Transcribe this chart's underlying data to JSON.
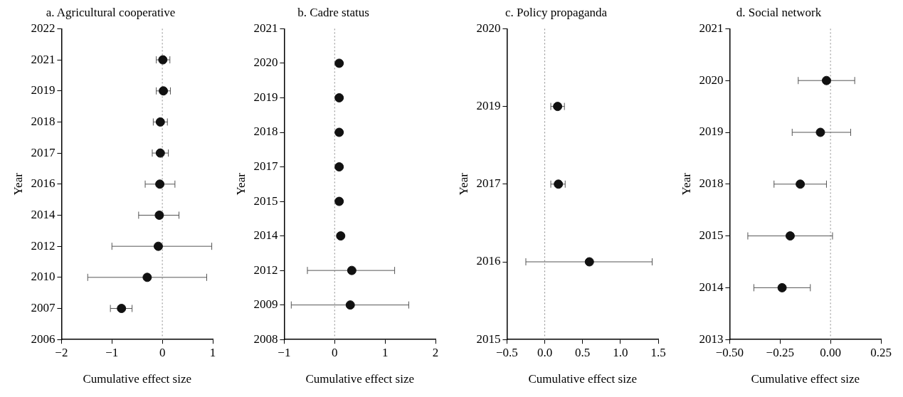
{
  "chart_data": [
    {
      "type": "scatter",
      "orientation": "horizontal",
      "title": "a. Agricultural cooperative",
      "xlabel": "Cumulative effect size",
      "ylabel": "Year",
      "marker": "circle",
      "grid": false,
      "categories": [
        "2022",
        "2021",
        "2019",
        "2018",
        "2017",
        "2016",
        "2014",
        "2012",
        "2010",
        "2007",
        "2006"
      ],
      "series": [
        {
          "color": "#111111",
          "values": [
            null,
            0.01,
            0.02,
            -0.04,
            -0.04,
            -0.05,
            -0.06,
            -0.08,
            -0.3,
            -0.81,
            null
          ],
          "errors": [
            null,
            [
              -0.12,
              0.15
            ],
            [
              -0.12,
              0.16
            ],
            [
              -0.18,
              0.1
            ],
            [
              -0.2,
              0.12
            ],
            [
              -0.34,
              0.25
            ],
            [
              -0.47,
              0.33
            ],
            [
              -1.0,
              0.98
            ],
            [
              -1.48,
              0.88
            ],
            [
              -1.03,
              -0.6
            ],
            null
          ]
        }
      ],
      "xlim": [
        -2,
        1
      ],
      "xticks": [
        -2,
        -1,
        0,
        1
      ],
      "ref_lines": [
        {
          "axis": "x",
          "value": 0,
          "color": "#888888",
          "line_style": "dotted"
        }
      ]
    },
    {
      "type": "scatter",
      "orientation": "horizontal",
      "title": "b. Cadre status",
      "xlabel": "Cumulative effect size",
      "ylabel": "Year",
      "marker": "circle",
      "grid": false,
      "categories": [
        "2021",
        "2020",
        "2019",
        "2018",
        "2017",
        "2015",
        "2014",
        "2012",
        "2009",
        "2008"
      ],
      "series": [
        {
          "color": "#111111",
          "values": [
            null,
            0.09,
            0.09,
            0.09,
            0.09,
            0.09,
            0.12,
            0.34,
            0.31,
            null
          ],
          "errors": [
            null,
            null,
            null,
            null,
            null,
            null,
            null,
            [
              -0.54,
              1.19
            ],
            [
              -0.86,
              1.47
            ],
            null
          ]
        }
      ],
      "xlim": [
        -1,
        2
      ],
      "xticks": [
        -1,
        0,
        1,
        2
      ],
      "ref_lines": [
        {
          "axis": "x",
          "value": 0,
          "color": "#888888",
          "line_style": "dotted"
        }
      ]
    },
    {
      "type": "scatter",
      "orientation": "horizontal",
      "title": "c. Policy propaganda",
      "xlabel": "Cumulative effect size",
      "ylabel": "Year",
      "marker": "circle",
      "grid": false,
      "categories": [
        "2020",
        "2019",
        "2017",
        "2016",
        "2015"
      ],
      "series": [
        {
          "color": "#111111",
          "values": [
            null,
            0.17,
            0.18,
            0.59,
            null
          ],
          "errors": [
            null,
            [
              0.08,
              0.26
            ],
            [
              0.08,
              0.27
            ],
            [
              -0.25,
              1.42
            ],
            null
          ]
        }
      ],
      "xlim": [
        -0.5,
        1.5
      ],
      "xticks": [
        {
          "value": -0.5,
          "label": "−0.5"
        },
        {
          "value": 0,
          "label": "0.0"
        },
        {
          "value": 0.5,
          "label": "0.5"
        },
        {
          "value": 1,
          "label": "1.0"
        },
        {
          "value": 1.5,
          "label": "1.5"
        }
      ],
      "ref_lines": [
        {
          "axis": "x",
          "value": 0,
          "color": "#888888",
          "line_style": "dotted"
        }
      ]
    },
    {
      "type": "scatter",
      "orientation": "horizontal",
      "title": "d. Social network",
      "xlabel": "Cumulative effect size",
      "ylabel": "Year",
      "marker": "circle",
      "grid": false,
      "categories": [
        "2021",
        "2020",
        "2019",
        "2018",
        "2015",
        "2014",
        "2013"
      ],
      "series": [
        {
          "color": "#111111",
          "values": [
            null,
            -0.02,
            -0.05,
            -0.15,
            -0.2,
            -0.24,
            null
          ],
          "errors": [
            null,
            [
              -0.16,
              0.12
            ],
            [
              -0.19,
              0.1
            ],
            [
              -0.28,
              -0.02
            ],
            [
              -0.41,
              0.01
            ],
            [
              -0.38,
              -0.1
            ],
            null
          ]
        }
      ],
      "xlim": [
        -0.5,
        0.25
      ],
      "xticks": [
        {
          "value": -0.5,
          "label": "−0.50"
        },
        {
          "value": -0.25,
          "label": "−0.25"
        },
        {
          "value": 0,
          "label": "0.00"
        },
        {
          "value": 0.25,
          "label": "0.25"
        }
      ],
      "ref_lines": [
        {
          "axis": "x",
          "value": 0,
          "color": "#888888",
          "line_style": "dotted"
        }
      ]
    }
  ]
}
